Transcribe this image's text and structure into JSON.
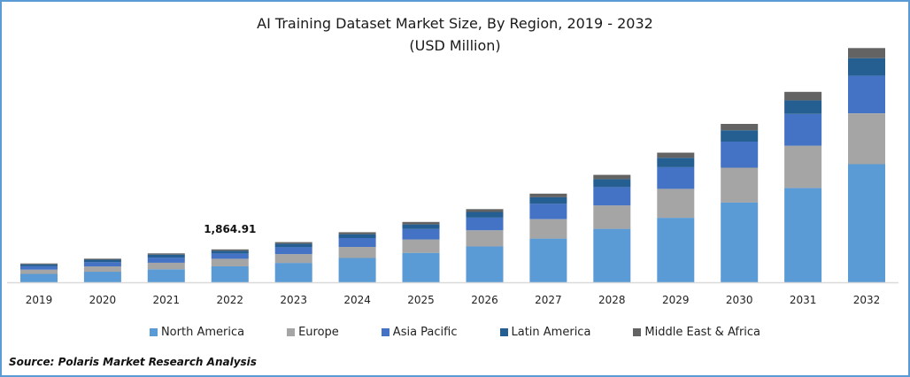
{
  "chart_data": {
    "type": "bar",
    "stacked": true,
    "title": "AI Training Dataset Market Size, By Region, 2019 - 2032",
    "subtitle": "(USD Million)",
    "xlabel": "",
    "ylabel": "",
    "categories": [
      "2019",
      "2020",
      "2021",
      "2022",
      "2023",
      "2024",
      "2025",
      "2026",
      "2027",
      "2028",
      "2029",
      "2030",
      "2031",
      "2032"
    ],
    "series": [
      {
        "name": "North America",
        "color": "#5b9bd5",
        "values": [
          480,
          600,
          740,
          905,
          1100,
          1380,
          1670,
          2030,
          2480,
          3030,
          3660,
          4530,
          5350,
          6700
        ]
      },
      {
        "name": "Europe",
        "color": "#a5a5a5",
        "values": [
          240,
          300,
          370,
          430,
          500,
          630,
          760,
          920,
          1100,
          1330,
          1640,
          1970,
          2400,
          2880
        ]
      },
      {
        "name": "Asia Pacific",
        "color": "#4472c4",
        "values": [
          190,
          240,
          290,
          300,
          400,
          500,
          590,
          720,
          870,
          1040,
          1230,
          1480,
          1790,
          2130
        ]
      },
      {
        "name": "Latin America",
        "color": "#255e91",
        "values": [
          110,
          140,
          170,
          150,
          190,
          220,
          260,
          320,
          380,
          450,
          530,
          640,
          780,
          1000
        ]
      },
      {
        "name": "Middle East & Africa",
        "color": "#636363",
        "values": [
          50,
          60,
          70,
          80,
          90,
          110,
          140,
          160,
          200,
          240,
          290,
          360,
          480,
          570
        ]
      }
    ],
    "annotations": [
      {
        "category": "2022",
        "text": "1,864.91"
      }
    ],
    "ylim": [
      0,
      14000
    ],
    "grid": false,
    "y_axis_visible": false,
    "legend_position": "bottom"
  },
  "source_text": "Source: Polaris  Market Research Analysis"
}
